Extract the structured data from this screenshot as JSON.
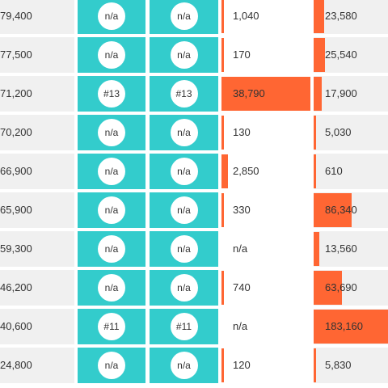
{
  "colors": {
    "teal": "#33cccc",
    "bar": "#ff6633",
    "row_bg": "#f0f0f0"
  },
  "rows": [
    {
      "col1": "79,400",
      "rank_a": "n/a",
      "rank_b": "n/a",
      "value_c": "1,040",
      "value_c_bar_fraction": 0.027,
      "value_d": "23,580",
      "value_d_bar_fraction": 0.14
    },
    {
      "col1": "77,500",
      "rank_a": "n/a",
      "rank_b": "n/a",
      "value_c": "170",
      "value_c_bar_fraction": 0.006,
      "value_d": "25,540",
      "value_d_bar_fraction": 0.15
    },
    {
      "col1": "71,200",
      "rank_a": "#13",
      "rank_b": "#13",
      "value_c": "38,790",
      "value_c_bar_fraction": 1.0,
      "value_d": "17,900",
      "value_d_bar_fraction": 0.11
    },
    {
      "col1": "70,200",
      "rank_a": "n/a",
      "rank_b": "n/a",
      "value_c": "130",
      "value_c_bar_fraction": 0.006,
      "value_d": "5,030",
      "value_d_bar_fraction": 0.03
    },
    {
      "col1": "66,900",
      "rank_a": "n/a",
      "rank_b": "n/a",
      "value_c": "2,850",
      "value_c_bar_fraction": 0.074,
      "value_d": "610",
      "value_d_bar_fraction": 0.005
    },
    {
      "col1": "65,900",
      "rank_a": "n/a",
      "rank_b": "n/a",
      "value_c": "330",
      "value_c_bar_fraction": 0.009,
      "value_d": "86,340",
      "value_d_bar_fraction": 0.51
    },
    {
      "col1": "59,300",
      "rank_a": "n/a",
      "rank_b": "n/a",
      "value_c": "n/a",
      "value_c_bar_fraction": 0,
      "value_d": "13,560",
      "value_d_bar_fraction": 0.08
    },
    {
      "col1": "46,200",
      "rank_a": "n/a",
      "rank_b": "n/a",
      "value_c": "740",
      "value_c_bar_fraction": 0.019,
      "value_d": "63,690",
      "value_d_bar_fraction": 0.38
    },
    {
      "col1": "40,600",
      "rank_a": "#11",
      "rank_b": "#11",
      "value_c": "n/a",
      "value_c_bar_fraction": 0,
      "value_d": "183,160",
      "value_d_bar_fraction": 1.0
    },
    {
      "col1": "24,800",
      "rank_a": "n/a",
      "rank_b": "n/a",
      "value_c": "120",
      "value_c_bar_fraction": 0.006,
      "value_d": "5,830",
      "value_d_bar_fraction": 0.035
    }
  ]
}
